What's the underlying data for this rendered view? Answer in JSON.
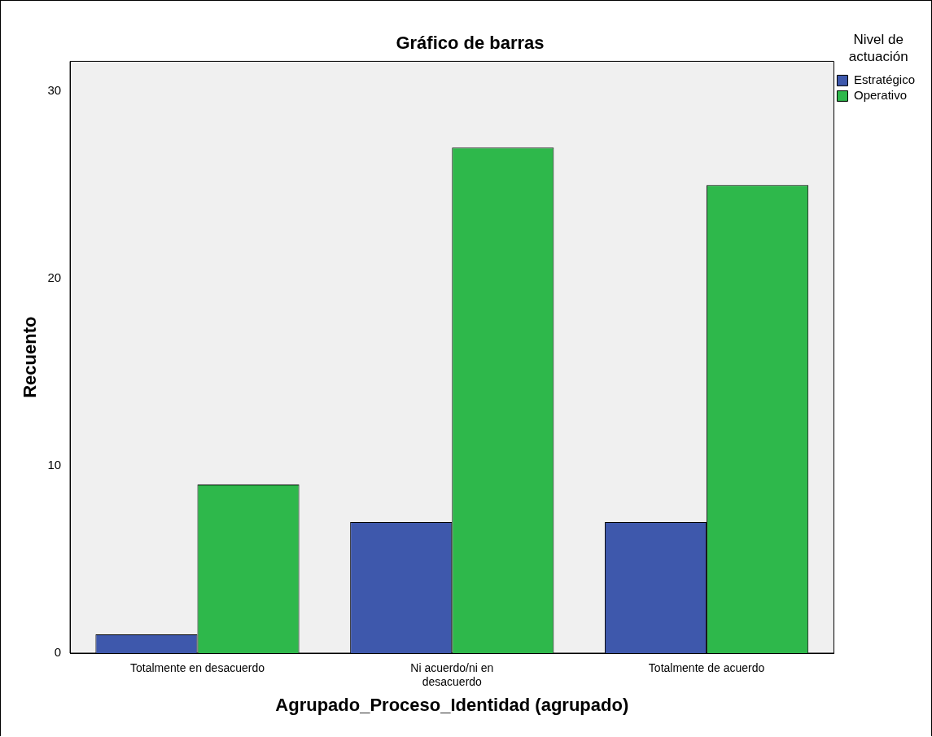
{
  "chart_data": {
    "type": "bar",
    "title": "Gráfico de barras",
    "xlabel": "Agrupado_Proceso_Identidad (agrupado)",
    "ylabel": "Recuento",
    "legend_title": "Nivel de actuación",
    "categories": [
      "Totalmente en desacuerdo",
      "Ni acuerdo/ni en desacuerdo",
      "Totalmente de acuerdo"
    ],
    "series": [
      {
        "name": "Estratégico",
        "color": "#3e58ac",
        "values": [
          1,
          7,
          7
        ]
      },
      {
        "name": "Operativo",
        "color": "#2eb84b",
        "values": [
          9,
          27,
          25
        ]
      }
    ],
    "ylim": [
      0,
      31.6
    ],
    "yticks": [
      0,
      10,
      20,
      30
    ],
    "grid": false,
    "legend": "top right"
  }
}
